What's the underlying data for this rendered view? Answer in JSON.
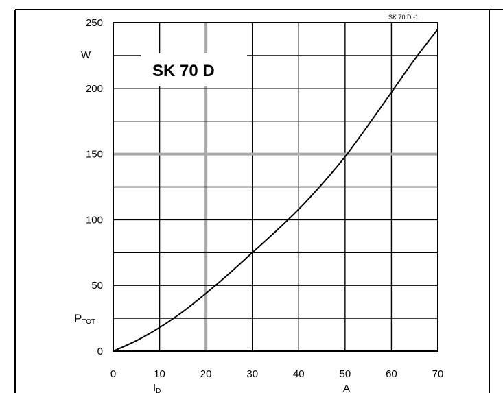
{
  "chart_data": {
    "type": "line",
    "chart_id": "SK 70 D -1",
    "title": "SK 70 D",
    "ylabel_unit": "W",
    "ylabel": "P",
    "ylabel_sub": "TOT",
    "xlabel": "I",
    "xlabel_sub": "D",
    "xlabel_unit": "A",
    "xlim": [
      0,
      70
    ],
    "ylim": [
      0,
      250
    ],
    "x_ticks": [
      0,
      10,
      20,
      30,
      40,
      50,
      60,
      70
    ],
    "x_tick_labels": [
      "0",
      "10",
      "20",
      "30",
      "40",
      "50",
      "60",
      "70"
    ],
    "y_ticks": [
      0,
      50,
      100,
      150,
      200,
      250
    ],
    "y_tick_labels": [
      "0",
      "50",
      "100",
      "150",
      "200",
      "250"
    ],
    "y_minor_step": 25,
    "grid": true,
    "highlight_gridlines": {
      "x": [
        20
      ],
      "y": [
        150
      ]
    },
    "series": [
      {
        "x": [
          0,
          5,
          10,
          15,
          20,
          25,
          30,
          35,
          40,
          45,
          50,
          55,
          60,
          65,
          70
        ],
        "values": [
          0,
          8,
          18,
          30,
          44,
          59,
          75,
          91,
          108,
          127,
          148,
          172,
          197,
          222,
          245
        ]
      }
    ]
  }
}
